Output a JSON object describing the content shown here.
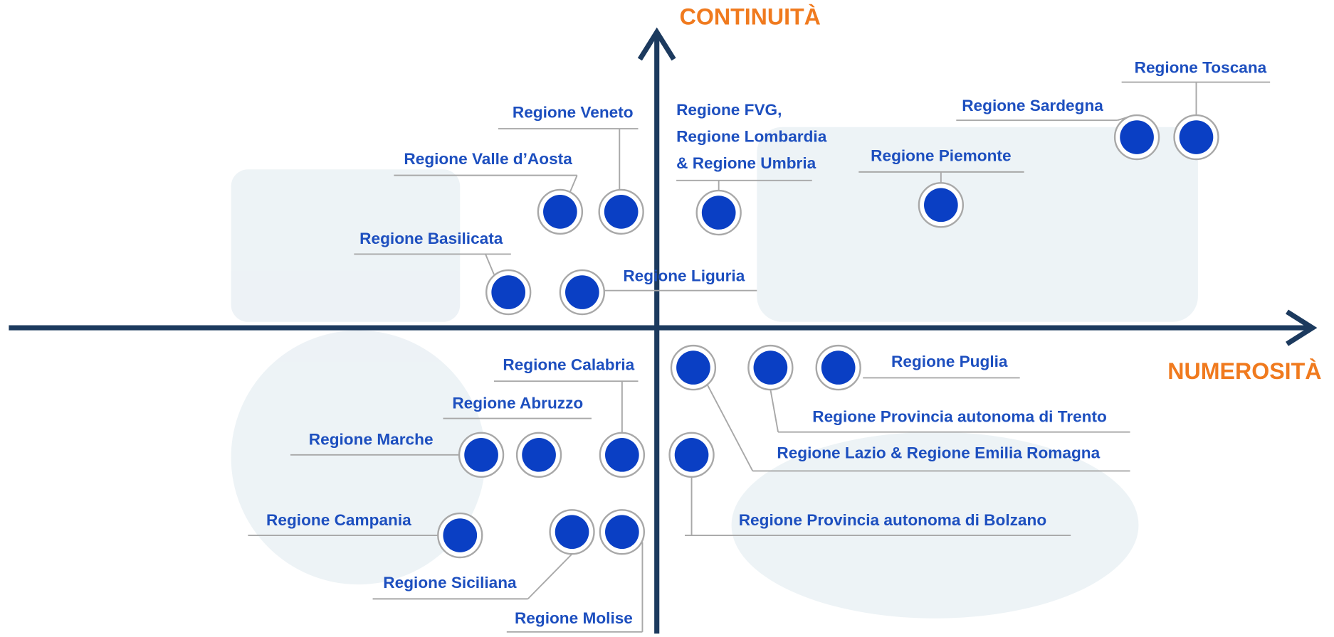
{
  "axes": {
    "y_label": "CONTINUITÀ",
    "x_label": "NUMEROSITÀ"
  },
  "nodes": [
    {
      "label": "Regione Toscana"
    },
    {
      "label": "Regione Sardegna"
    },
    {
      "label": "Regione Piemonte"
    },
    {
      "lines": [
        "Regione FVG,",
        "Regione Lombardia",
        "& Regione Umbria"
      ]
    },
    {
      "label": "Regione Veneto"
    },
    {
      "label": "Regione Valle d’Aosta"
    },
    {
      "label": "Regione Basilicata"
    },
    {
      "label": "Regione Liguria"
    },
    {
      "label": "Regione Puglia"
    },
    {
      "label": "Regione Provincia autonoma di Trento"
    },
    {
      "label": "Regione Lazio &  Regione Emilia Romagna"
    },
    {
      "label": "Regione Calabria"
    },
    {
      "label": "Regione Abruzzo"
    },
    {
      "label": "Regione Marche"
    },
    {
      "label": "Regione Provincia autonoma di Bolzano"
    },
    {
      "label": "Regione Campania"
    },
    {
      "label": "Regione Siciliana"
    },
    {
      "label": "Regione Molise"
    }
  ]
}
